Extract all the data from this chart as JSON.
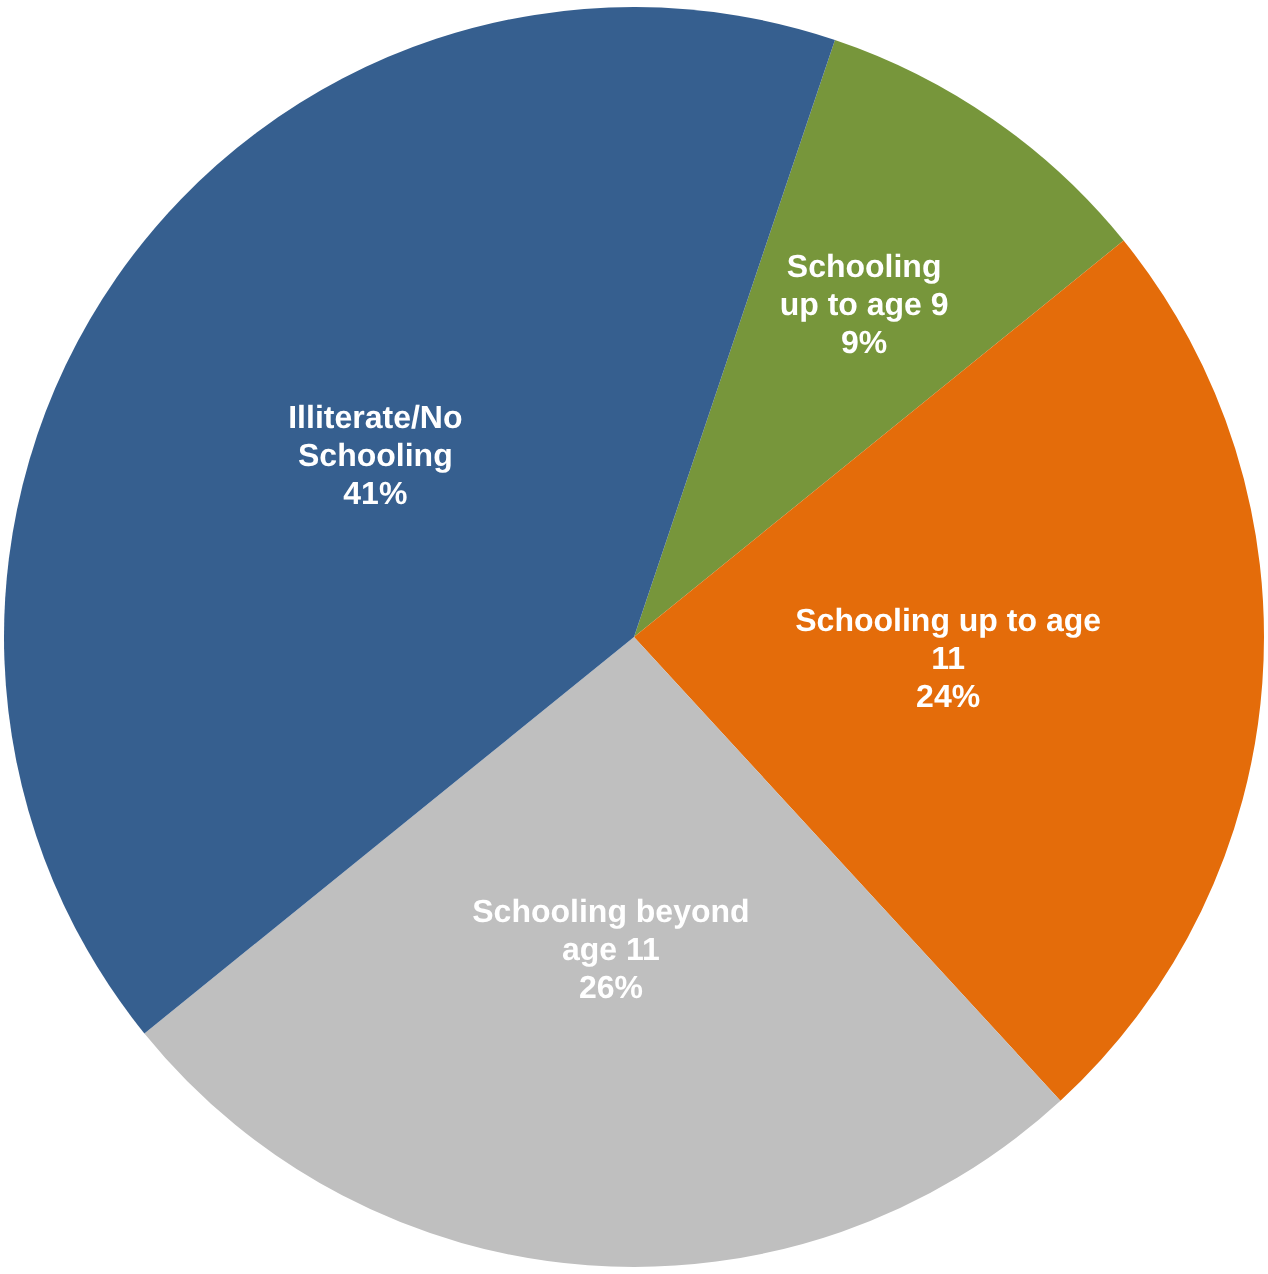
{
  "chart_data": {
    "type": "pie",
    "categories": [
      "Schooling up to age 9",
      "Schooling up to age 11",
      "Schooling beyond age 11",
      "Illiterate/No Schooling"
    ],
    "values": [
      9,
      24,
      26,
      41
    ],
    "value_labels": [
      "9%",
      "24%",
      "26%",
      "41%"
    ],
    "colors": [
      "#77963b",
      "#e46c0a",
      "#bfbfbf",
      "#365f8f"
    ],
    "legend": false
  }
}
